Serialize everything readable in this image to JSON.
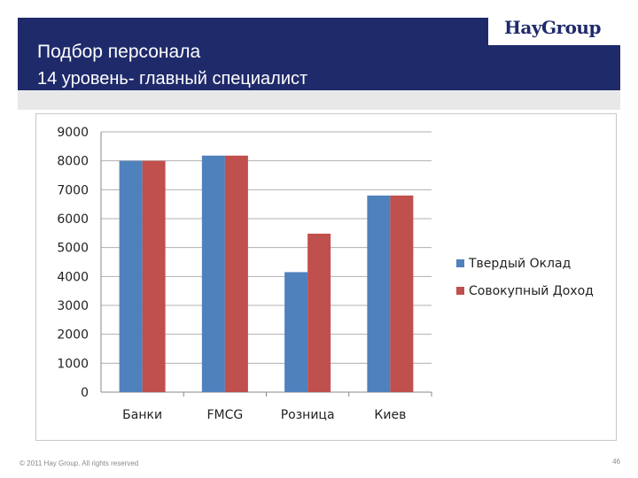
{
  "slide": {
    "title_line1": "Подбор персонала",
    "title_line2": "14 уровень- главный специалист",
    "logo": "HayGroup",
    "footer": "© 2011 Hay Group. All rights reserved",
    "page_number": "46"
  },
  "colors": {
    "header_bg": "#1f2a6b",
    "series_1": "#4f81bd",
    "series_2": "#c0504d"
  },
  "chart_data": {
    "type": "bar",
    "categories": [
      "Банки",
      "FMCG",
      "Розница",
      "Киев"
    ],
    "series": [
      {
        "name": "Твердый Оклад",
        "values": [
          8000,
          8180,
          4150,
          6800
        ]
      },
      {
        "name": "Совокупный Доход",
        "values": [
          8000,
          8180,
          5480,
          6800
        ]
      }
    ],
    "ylim": [
      0,
      9000
    ],
    "yticks": [
      0,
      1000,
      2000,
      3000,
      4000,
      5000,
      6000,
      7000,
      8000,
      9000
    ],
    "grid": true,
    "legend": "right"
  }
}
